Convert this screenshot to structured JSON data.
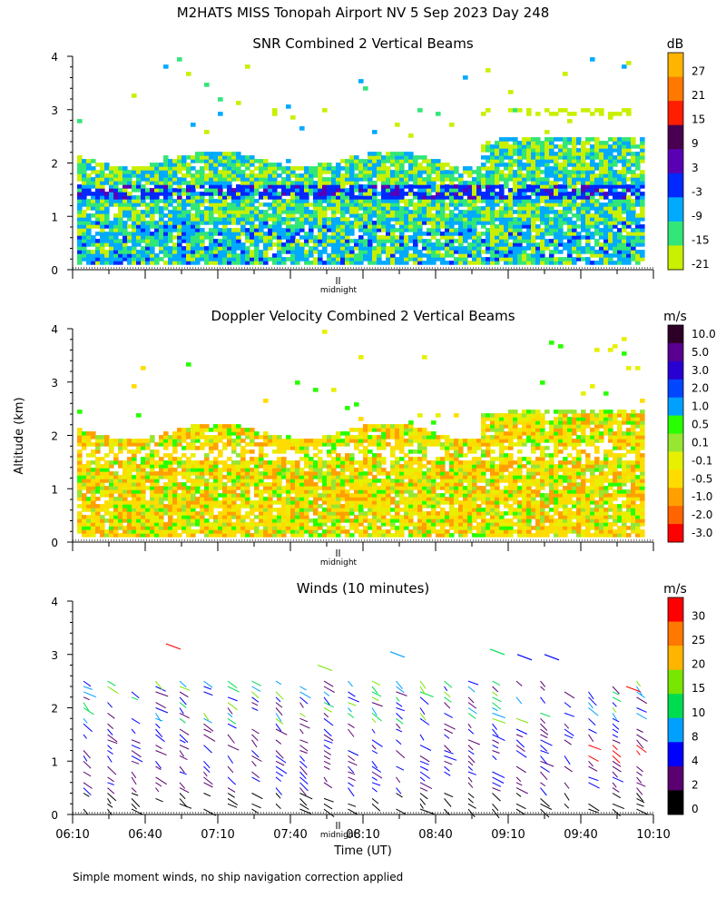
{
  "main_title": "M2HATS MISS Tonopah Airport NV   5 Sep 2023 Day 248",
  "y_axis_label": "Altitude (km)",
  "x_axis_label": "Time (UT)",
  "midnight_label": "midnight",
  "footer_note": "Simple moment winds, no ship navigation correction applied",
  "chart_data": [
    {
      "type": "heatmap",
      "title": "SNR Combined 2 Vertical Beams",
      "units": "dB",
      "ylim": [
        0,
        4
      ],
      "y_ticks": [
        "0",
        "1",
        "2",
        "3",
        "4"
      ],
      "colorbar": {
        "labels": [
          "27",
          "21",
          "15",
          "9",
          "3",
          "-3",
          "-9",
          "-15",
          "-21"
        ],
        "colors": [
          "#ffb400",
          "#ff7800",
          "#ff1e00",
          "#4a0050",
          "#5a00b4",
          "#0028ff",
          "#00aaff",
          "#32e678",
          "#c8f000"
        ]
      }
    },
    {
      "type": "heatmap",
      "title": "Doppler Velocity Combined 2 Vertical Beams",
      "units": "m/s",
      "ylim": [
        0,
        4
      ],
      "y_ticks": [
        "0",
        "1",
        "2",
        "3",
        "4"
      ],
      "colorbar": {
        "labels": [
          "10.0",
          "5.0",
          "3.0",
          "2.0",
          "1.0",
          "0.5",
          "0.1",
          "-0.1",
          "-0.5",
          "-1.0",
          "-2.0",
          "-3.0"
        ],
        "colors": [
          "#2d0028",
          "#5a0090",
          "#2800d2",
          "#0046ff",
          "#00a0ff",
          "#28ff00",
          "#96e632",
          "#e6f000",
          "#ffdc00",
          "#ffa000",
          "#ff6400",
          "#ff0000"
        ]
      }
    },
    {
      "type": "scatter",
      "title": "Winds (10 minutes)",
      "units": "m/s",
      "ylim": [
        0,
        4
      ],
      "y_ticks": [
        "0",
        "1",
        "2",
        "3",
        "4"
      ],
      "x_ticks": [
        "06:10",
        "06:40",
        "07:10",
        "07:40",
        "08:10",
        "08:40",
        "09:10",
        "09:40",
        "10:10"
      ],
      "colorbar": {
        "labels": [
          "30",
          "25",
          "20",
          "15",
          "10",
          "8",
          "4",
          "2",
          "0"
        ],
        "colors": [
          "#ff0000",
          "#ff7800",
          "#ffb400",
          "#78e600",
          "#00dc50",
          "#00a0ff",
          "#0000ff",
          "#5a0070",
          "#000000"
        ]
      }
    }
  ]
}
